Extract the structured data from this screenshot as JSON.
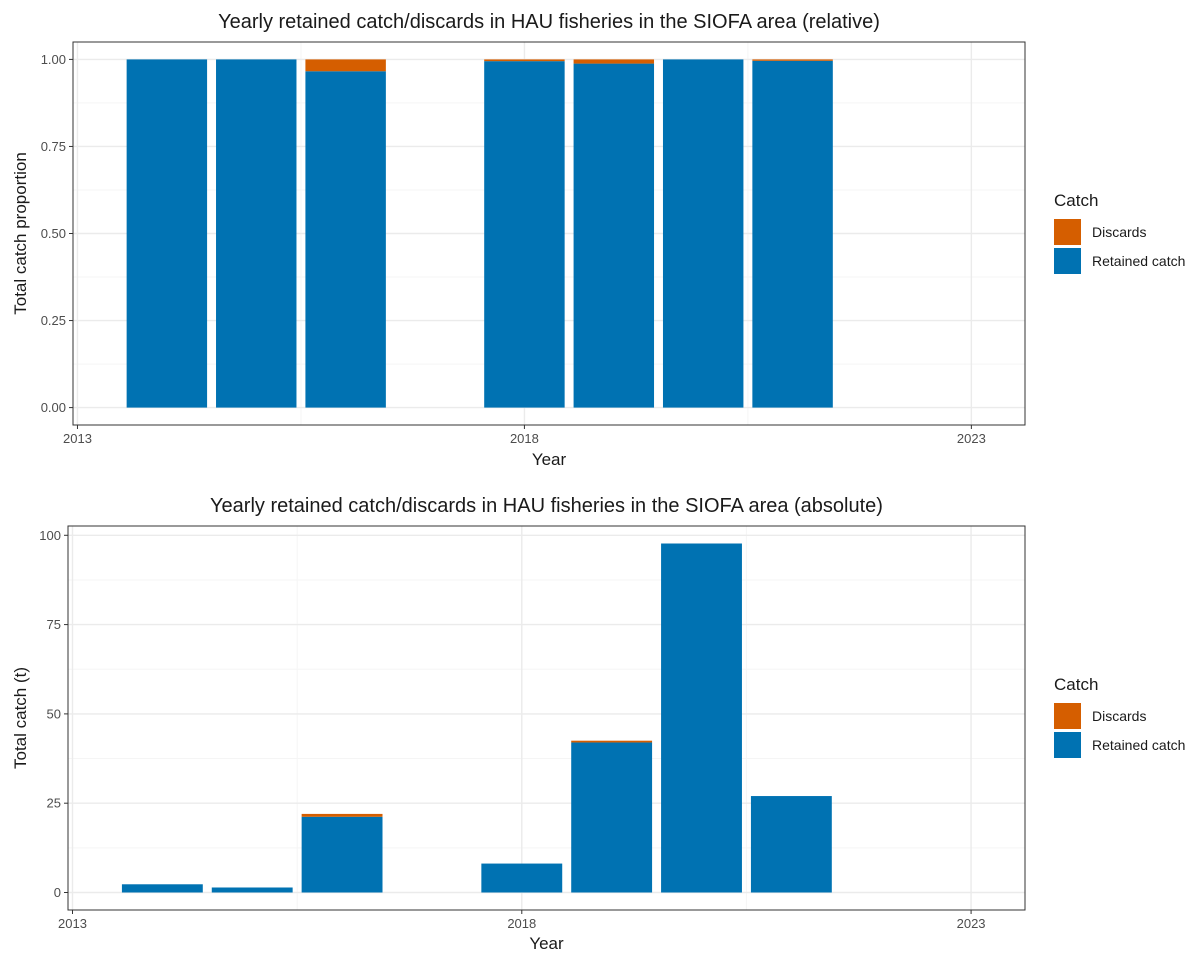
{
  "colors": {
    "discards": "#D55E00",
    "retained": "#0072B2",
    "grid_major": "#EBEBEB",
    "grid_minor": "#F5F5F5",
    "panel_border": "#333333"
  },
  "chart_data": [
    {
      "type": "bar",
      "stacked": true,
      "title": "Yearly retained catch/discards in HAU fisheries in the SIOFA area (relative)",
      "xlabel": "Year",
      "ylabel": "Total catch proportion",
      "xlim": [
        2012.95,
        2023.6
      ],
      "ylim": [
        -0.05,
        1.05
      ],
      "x_ticks": [
        2013,
        2018,
        2023
      ],
      "x_tick_labels": [
        "2013",
        "2018",
        "2023"
      ],
      "y_ticks": [
        0,
        0.25,
        0.5,
        0.75,
        1
      ],
      "y_tick_labels": [
        "0.00",
        "0.25",
        "0.50",
        "0.75",
        "1.00"
      ],
      "grid": true,
      "legend_position": "right",
      "legend_title": "Catch",
      "legend": [
        {
          "key": "discards",
          "label": "Discards"
        },
        {
          "key": "retained",
          "label": "Retained catch"
        }
      ],
      "x": [
        2014,
        2015,
        2016,
        2018,
        2019,
        2020,
        2021
      ],
      "series": [
        {
          "name": "Retained catch",
          "key": "retained",
          "values": [
            1.0,
            1.0,
            0.966,
            0.995,
            0.988,
            1.0,
            0.996
          ]
        },
        {
          "name": "Discards",
          "key": "discards",
          "values": [
            0.0,
            0.0,
            0.034,
            0.005,
            0.012,
            0.0,
            0.004
          ]
        }
      ]
    },
    {
      "type": "bar",
      "stacked": true,
      "title": "Yearly retained catch/discards in HAU fisheries in the SIOFA area (absolute)",
      "xlabel": "Year",
      "ylabel": "Total catch (t)",
      "xlim": [
        2012.95,
        2023.6
      ],
      "ylim": [
        -4.9,
        102.6
      ],
      "x_ticks": [
        2013,
        2018,
        2023
      ],
      "x_tick_labels": [
        "2013",
        "2018",
        "2023"
      ],
      "y_ticks": [
        0,
        25,
        50,
        75,
        100
      ],
      "y_tick_labels": [
        "0",
        "25",
        "50",
        "75",
        "100"
      ],
      "grid": true,
      "legend_position": "right",
      "legend_title": "Catch",
      "legend": [
        {
          "key": "discards",
          "label": "Discards"
        },
        {
          "key": "retained",
          "label": "Retained catch"
        }
      ],
      "x": [
        2014,
        2015,
        2016,
        2018,
        2019,
        2020,
        2021
      ],
      "series": [
        {
          "name": "Retained catch",
          "key": "retained",
          "values": [
            2.3,
            1.4,
            21.2,
            8.1,
            42.0,
            97.7,
            27.0
          ]
        },
        {
          "name": "Discards",
          "key": "discards",
          "values": [
            0.0,
            0.0,
            0.8,
            0.0,
            0.5,
            0.0,
            0.0
          ]
        }
      ]
    }
  ]
}
